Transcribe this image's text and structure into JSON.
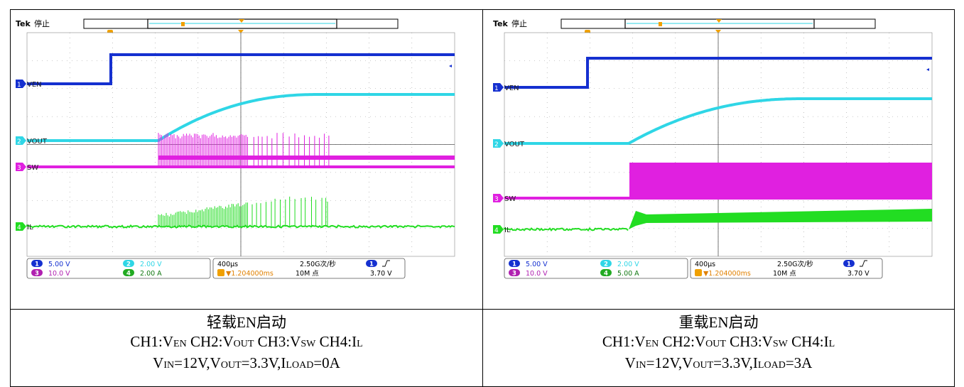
{
  "scopes": [
    {
      "brand": "Tek",
      "state": "停止",
      "labels": {
        "ch1": "VEN",
        "ch2": "VOUT",
        "ch3": "SW",
        "ch4": "IL"
      },
      "scales": {
        "ch1": "5.00 V",
        "ch2": "2.00 V",
        "ch3": "10.0 V",
        "ch4": "2.00 A"
      },
      "ch_nums": {
        "ch1": "1",
        "ch2": "2",
        "ch3": "3",
        "ch4": "4"
      },
      "timebase": "400μs",
      "sample_rate": "2.50G次/秒",
      "record": "10M 点",
      "trigger_pos": "▼1.204000ms",
      "trigger_level": "3.70 V",
      "load": "light"
    },
    {
      "brand": "Tek",
      "state": "停止",
      "labels": {
        "ch1": "VEN",
        "ch2": "VOUT",
        "ch3": "SW",
        "ch4": "IL"
      },
      "scales": {
        "ch1": "5.00 V",
        "ch2": "2.00 V",
        "ch3": "10.0 V",
        "ch4": "5.00 A"
      },
      "ch_nums": {
        "ch1": "1",
        "ch2": "2",
        "ch3": "3",
        "ch4": "4"
      },
      "timebase": "400μs",
      "sample_rate": "2.50G次/秒",
      "record": "10M 点",
      "trigger_pos": "▼1.204000ms",
      "trigger_level": "3.70 V",
      "load": "heavy"
    }
  ],
  "captions": [
    {
      "title": "轻载EN启动",
      "line2": [
        "CH1:V",
        "EN",
        " CH2:V",
        "OUT",
        " CH3:V",
        "SW",
        " CH4:I",
        "L"
      ],
      "line3": [
        "V",
        "IN",
        "=12V,V",
        "OUT",
        "=3.3V,I",
        "LOAD",
        "=0A"
      ]
    },
    {
      "title": "重载EN启动",
      "line2": [
        "CH1:V",
        "EN",
        " CH2:V",
        "OUT",
        " CH3:V",
        "SW",
        " CH4:I",
        "L"
      ],
      "line3": [
        "V",
        "IN",
        "=12V,V",
        "OUT",
        "=3.3V,I",
        "LOAD",
        "=3A"
      ]
    }
  ],
  "chart_data": [
    {
      "type": "line",
      "title": "轻载EN启动",
      "series": [
        {
          "name": "VEN"
        },
        {
          "name": "VOUT"
        },
        {
          "name": "SW"
        },
        {
          "name": "IL"
        }
      ]
    },
    {
      "type": "line",
      "title": "重载EN启动",
      "series": [
        {
          "name": "VEN"
        },
        {
          "name": "VOUT"
        },
        {
          "name": "SW"
        },
        {
          "name": "IL"
        }
      ]
    }
  ],
  "colors": {
    "ch1": "#1530d0",
    "ch2": "#2fd6e6",
    "ch3": "#e020e0",
    "ch4": "#22dd22"
  }
}
